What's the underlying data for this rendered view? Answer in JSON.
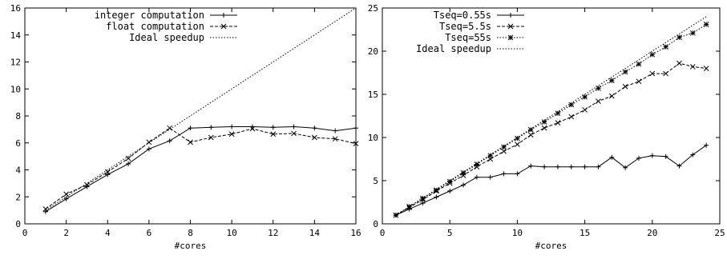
{
  "chart_data": [
    {
      "type": "line",
      "title": "",
      "xlabel": "#cores",
      "ylabel": "",
      "xlim": [
        0,
        16
      ],
      "ylim": [
        0,
        16
      ],
      "xticks": [
        0,
        2,
        4,
        6,
        8,
        10,
        12,
        14,
        16
      ],
      "yticks": [
        0,
        2,
        4,
        6,
        8,
        10,
        12,
        14,
        16
      ],
      "grid": false,
      "legend": "top-left",
      "series": [
        {
          "name": "integer computation",
          "style": "solid",
          "marker": "plus",
          "x": [
            1,
            2,
            3,
            4,
            5,
            6,
            7,
            8,
            9,
            10,
            11,
            12,
            13,
            14,
            15,
            16
          ],
          "y": [
            0.9,
            1.85,
            2.75,
            3.65,
            4.45,
            5.55,
            6.15,
            7.1,
            7.15,
            7.2,
            7.2,
            7.15,
            7.2,
            7.1,
            6.9,
            7.1
          ]
        },
        {
          "name": "float computation",
          "style": "dashed",
          "marker": "cross",
          "x": [
            1,
            2,
            3,
            4,
            5,
            6,
            7,
            8,
            9,
            10,
            11,
            12,
            13,
            14,
            15,
            16
          ],
          "y": [
            1.1,
            2.2,
            2.9,
            3.85,
            4.85,
            6.05,
            7.1,
            6.05,
            6.4,
            6.65,
            7.05,
            6.65,
            6.7,
            6.4,
            6.3,
            5.95
          ]
        },
        {
          "name": "Ideal speedup",
          "style": "dotted",
          "marker": "none",
          "x": [
            1,
            16
          ],
          "y": [
            1,
            16
          ]
        }
      ]
    },
    {
      "type": "line",
      "title": "",
      "xlabel": "#cores",
      "ylabel": "",
      "xlim": [
        0,
        25
      ],
      "ylim": [
        0,
        25
      ],
      "xticks": [
        0,
        5,
        10,
        15,
        20,
        25
      ],
      "yticks": [
        0,
        5,
        10,
        15,
        20,
        25
      ],
      "grid": false,
      "legend": "top-left",
      "series": [
        {
          "name": "Tseq=0.55s",
          "style": "solid",
          "marker": "plus",
          "x": [
            1,
            2,
            3,
            4,
            5,
            6,
            7,
            8,
            9,
            10,
            11,
            12,
            13,
            14,
            15,
            16,
            17,
            18,
            19,
            20,
            21,
            22,
            23,
            24
          ],
          "y": [
            1,
            1.7,
            2.4,
            3.1,
            3.8,
            4.5,
            5.4,
            5.4,
            5.8,
            5.8,
            6.7,
            6.6,
            6.6,
            6.6,
            6.6,
            6.6,
            7.7,
            6.5,
            7.6,
            7.9,
            7.8,
            6.7,
            8.0,
            9.1
          ]
        },
        {
          "name": "Tseq=5.5s",
          "style": "dashed",
          "marker": "cross",
          "x": [
            1,
            2,
            3,
            4,
            5,
            6,
            7,
            8,
            9,
            10,
            11,
            12,
            13,
            14,
            15,
            16,
            17,
            18,
            19,
            20,
            21,
            22,
            23,
            24
          ],
          "y": [
            1,
            1.9,
            2.8,
            3.8,
            4.7,
            5.6,
            6.6,
            7.5,
            8.4,
            9.2,
            10.3,
            11.1,
            11.7,
            12.4,
            13.2,
            14.2,
            14.8,
            15.9,
            16.5,
            17.4,
            17.4,
            18.6,
            18.2,
            18.0
          ]
        },
        {
          "name": "Tseq=55s",
          "style": "dotted",
          "marker": "asterisk",
          "x": [
            1,
            2,
            3,
            4,
            5,
            6,
            7,
            8,
            9,
            10,
            11,
            12,
            13,
            14,
            15,
            16,
            17,
            18,
            19,
            20,
            21,
            22,
            23,
            24
          ],
          "y": [
            1,
            2.0,
            2.95,
            3.9,
            4.9,
            5.9,
            6.9,
            7.9,
            8.9,
            9.9,
            10.9,
            11.8,
            12.8,
            13.8,
            14.7,
            15.7,
            16.6,
            17.6,
            18.5,
            19.6,
            20.5,
            21.6,
            22.1,
            23.1
          ]
        },
        {
          "name": "Ideal speedup",
          "style": "dotted",
          "marker": "none",
          "x": [
            1,
            24
          ],
          "y": [
            1,
            24
          ]
        }
      ]
    }
  ]
}
